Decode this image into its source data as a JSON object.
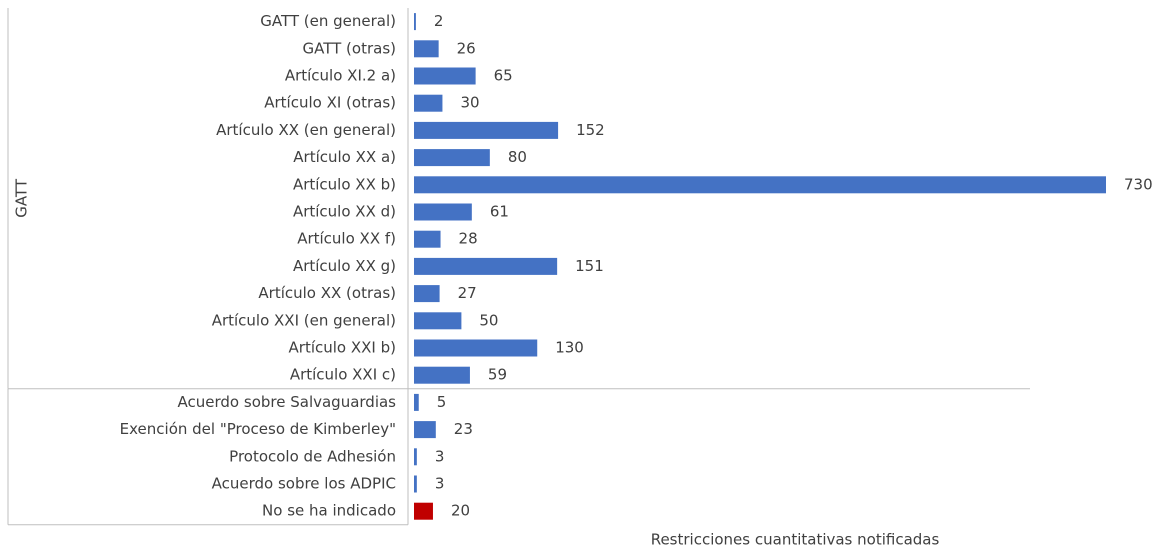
{
  "chart_data": {
    "type": "bar",
    "orientation": "horizontal",
    "x_label": "Restricciones cuantitativas notificadas",
    "xlim": [
      0,
      730
    ],
    "groups": [
      {
        "label": "GATT",
        "categories": [
          "GATT (en general)",
          "GATT (otras)",
          "Artículo XI.2 a)",
          "Artículo XI (otras)",
          "Artículo XX (en general)",
          "Artículo XX a)",
          "Artículo XX b)",
          "Artículo XX d)",
          "Artículo XX f)",
          "Artículo XX g)",
          "Artículo XX (otras)",
          "Artículo XXI (en general)",
          "Artículo XXI b)",
          "Artículo XXI c)"
        ],
        "values": [
          2,
          26,
          65,
          30,
          152,
          80,
          730,
          61,
          28,
          151,
          27,
          50,
          130,
          59
        ],
        "colors": [
          "#4472c4",
          "#4472c4",
          "#4472c4",
          "#4472c4",
          "#4472c4",
          "#4472c4",
          "#4472c4",
          "#4472c4",
          "#4472c4",
          "#4472c4",
          "#4472c4",
          "#4472c4",
          "#4472c4",
          "#4472c4"
        ]
      },
      {
        "label": null,
        "categories": [
          "Acuerdo sobre Salvaguardias",
          "Exención del \"Proceso de Kimberley\"",
          "Protocolo de Adhesión",
          "Acuerdo sobre los ADPIC",
          "No se ha indicado"
        ],
        "values": [
          5,
          23,
          3,
          3,
          20
        ],
        "colors": [
          "#4472c4",
          "#4472c4",
          "#4472c4",
          "#4472c4",
          "#c00000"
        ]
      }
    ]
  }
}
